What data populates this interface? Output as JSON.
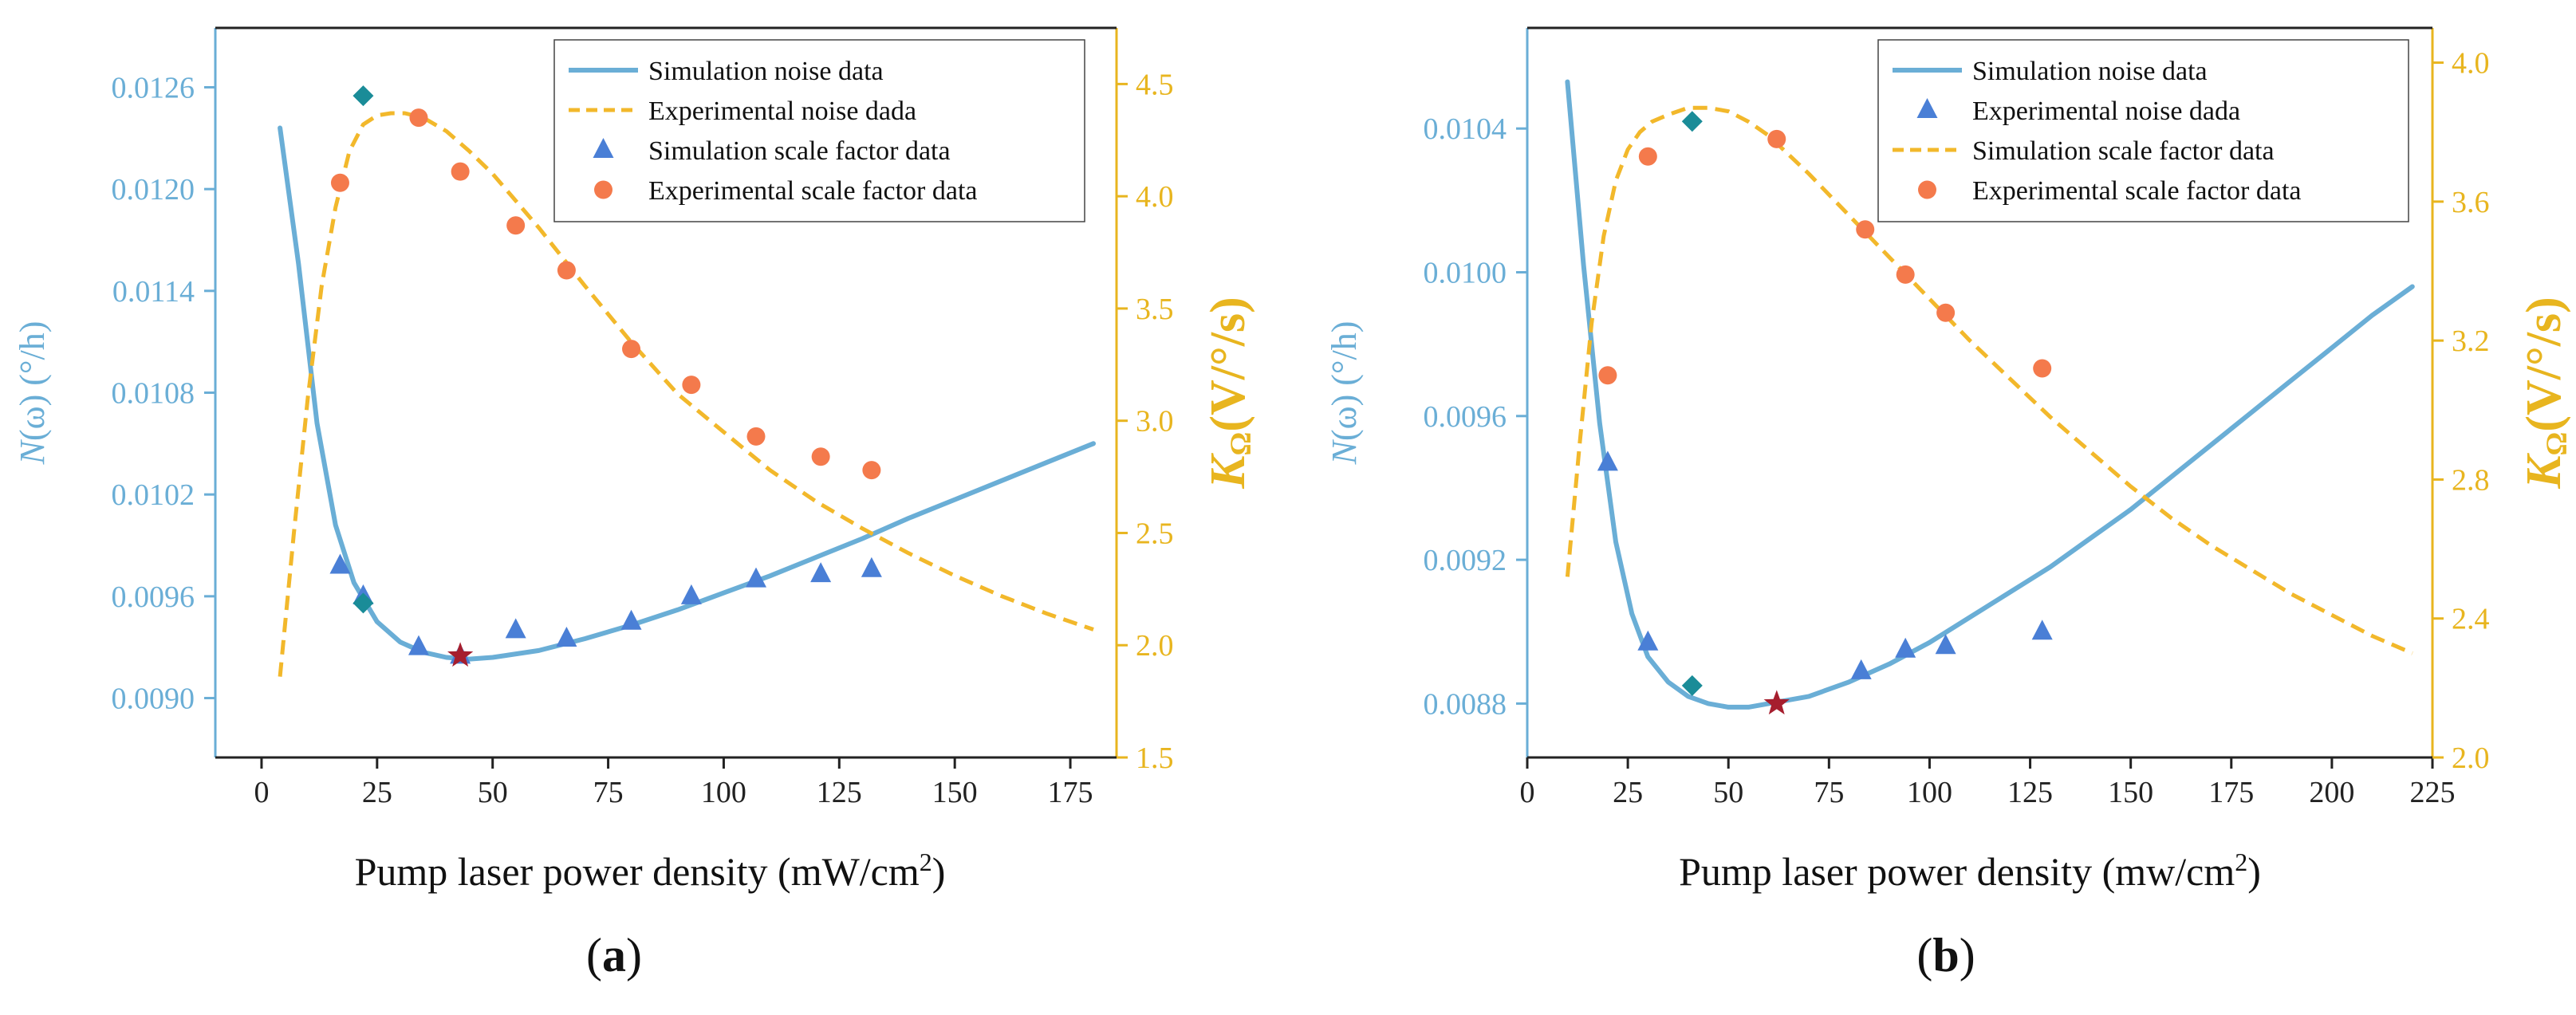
{
  "colors": {
    "blue": "#6AAED6",
    "blue_mark": "#4A7FD6",
    "orange_line": "#F2B82B",
    "orange_mark": "#F47A4C",
    "teal": "#1A8C98",
    "star": "#A61E2E",
    "right_axis": "#E8B51F"
  },
  "chart_data": [
    {
      "type": "line",
      "panel_label": "a",
      "xlabel": "Pump laser power density (mW/cm",
      "xlabel_sup": "2",
      "xlabel_tail": ")",
      "ylabel_left": "N(ω) (°/h)",
      "ylabel_right": "KΩ(V/°/s)",
      "xlim": [
        -10,
        185
      ],
      "xticks": [
        0,
        25,
        50,
        75,
        100,
        125,
        150,
        175
      ],
      "ylim_left": [
        0.00865,
        0.01295
      ],
      "yticks_left": [
        0.009,
        0.0096,
        0.0102,
        0.0108,
        0.0114,
        0.012,
        0.0126
      ],
      "ytick_labels_left": [
        "0.0090",
        "0.0096",
        "0.0102",
        "0.0108",
        "0.0114",
        "0.0120",
        "0.0126"
      ],
      "ylim_right": [
        1.5,
        4.75
      ],
      "yticks_right": [
        1.5,
        2.0,
        2.5,
        3.0,
        3.5,
        4.0,
        4.5
      ],
      "ytick_labels_right": [
        "1.5",
        "2.0",
        "2.5",
        "3.0",
        "3.5",
        "4.0",
        "4.5"
      ],
      "legend": [
        {
          "kind": "solid",
          "label": "Simulation noise data"
        },
        {
          "kind": "dash",
          "label": "Experimental noise dada"
        },
        {
          "kind": "triangle",
          "label": "Simulation  scale factor data"
        },
        {
          "kind": "circle",
          "label": "Experimental scale factor data"
        }
      ],
      "series": [
        {
          "name": "Simulation noise curve",
          "axis": "left",
          "style": "solid",
          "x": [
            4,
            8,
            12,
            16,
            20,
            25,
            30,
            35,
            40,
            45,
            50,
            60,
            70,
            80,
            90,
            100,
            110,
            120,
            130,
            140,
            150,
            160,
            170,
            180
          ],
          "y": [
            0.01236,
            0.01156,
            0.01062,
            0.01002,
            0.00968,
            0.00945,
            0.00933,
            0.00927,
            0.00924,
            0.00923,
            0.00924,
            0.00928,
            0.00935,
            0.00943,
            0.00952,
            0.00962,
            0.00972,
            0.00983,
            0.00994,
            0.01006,
            0.01017,
            0.01028,
            0.01039,
            0.0105
          ]
        },
        {
          "name": "Scale factor curve",
          "axis": "right",
          "style": "dash",
          "x": [
            4,
            7,
            10,
            13,
            16,
            19,
            22,
            25,
            28,
            31,
            35,
            40,
            45,
            50,
            60,
            70,
            80,
            90,
            100,
            110,
            120,
            130,
            140,
            150,
            160,
            170,
            180
          ],
          "y": [
            1.86,
            2.5,
            3.1,
            3.6,
            3.95,
            4.2,
            4.32,
            4.36,
            4.37,
            4.37,
            4.35,
            4.29,
            4.2,
            4.1,
            3.86,
            3.6,
            3.35,
            3.12,
            2.95,
            2.78,
            2.64,
            2.52,
            2.41,
            2.31,
            2.22,
            2.14,
            2.07
          ]
        },
        {
          "name": "Simulation noise points",
          "axis": "left",
          "marker": "triangle",
          "x": [
            17,
            22,
            34,
            43,
            55,
            66,
            80,
            93,
            107,
            121,
            132
          ],
          "y": [
            0.00978,
            0.0096,
            0.0093,
            0.00925,
            0.0094,
            0.00935,
            0.00945,
            0.0096,
            0.0097,
            0.00973,
            0.00976
          ]
        },
        {
          "name": "Experimental scale factor points",
          "axis": "right",
          "marker": "circle",
          "x": [
            17,
            34,
            43,
            55,
            66,
            80,
            93,
            107,
            121,
            132
          ],
          "y": [
            4.06,
            4.35,
            4.11,
            3.87,
            3.67,
            3.32,
            3.16,
            2.93,
            2.84,
            2.78
          ]
        },
        {
          "name": "Diamond highlights",
          "axis": "left",
          "marker": "diamond",
          "x": [
            22,
            22
          ],
          "y": [
            0.01255,
            0.00956
          ]
        },
        {
          "name": "Optimum point",
          "axis": "left",
          "marker": "star",
          "x": [
            43
          ],
          "y": [
            0.00925
          ]
        }
      ]
    },
    {
      "type": "line",
      "panel_label": "b",
      "xlabel": "Pump laser power density (mw/cm",
      "xlabel_sup": "2",
      "xlabel_tail": ")",
      "ylabel_left": "N(ω) (°/h)",
      "ylabel_right": "KΩ(V/°/s)",
      "xlim": [
        0,
        225
      ],
      "xticks": [
        0,
        25,
        50,
        75,
        100,
        125,
        150,
        175,
        200,
        225
      ],
      "ylim_left": [
        0.00865,
        0.01068
      ],
      "yticks_left": [
        0.0088,
        0.0092,
        0.0096,
        0.01,
        0.0104
      ],
      "ytick_labels_left": [
        "0.0088",
        "0.0092",
        "0.0096",
        "0.0100",
        "0.0104"
      ],
      "ylim_right": [
        2.0,
        4.1
      ],
      "yticks_right": [
        2.0,
        2.4,
        2.8,
        3.2,
        3.6,
        4.0
      ],
      "ytick_labels_right": [
        "2.0",
        "2.4",
        "2.8",
        "3.2",
        "3.6",
        "4.0"
      ],
      "legend": [
        {
          "kind": "solid",
          "label": "Simulation noise data"
        },
        {
          "kind": "triangle",
          "label": "Experimental noise dada"
        },
        {
          "kind": "dash",
          "label": "Simulation  scale factor data"
        },
        {
          "kind": "circle",
          "label": "Experimental scale factor data"
        }
      ],
      "series": [
        {
          "name": "Simulation noise curve",
          "axis": "left",
          "style": "solid",
          "x": [
            10,
            14,
            18,
            22,
            26,
            30,
            35,
            40,
            45,
            50,
            55,
            60,
            70,
            80,
            90,
            100,
            110,
            120,
            130,
            140,
            150,
            160,
            170,
            180,
            190,
            200,
            210,
            220
          ],
          "y": [
            0.01053,
            0.01002,
            0.00958,
            0.00925,
            0.00905,
            0.00893,
            0.00886,
            0.00882,
            0.0088,
            0.00879,
            0.00879,
            0.0088,
            0.00882,
            0.00886,
            0.00891,
            0.00897,
            0.00904,
            0.00911,
            0.00918,
            0.00926,
            0.00934,
            0.00943,
            0.00952,
            0.00961,
            0.0097,
            0.00979,
            0.00988,
            0.00996
          ]
        },
        {
          "name": "Scale factor curve",
          "axis": "right",
          "style": "dash",
          "x": [
            10,
            13,
            16,
            19,
            22,
            25,
            28,
            31,
            35,
            40,
            45,
            50,
            55,
            60,
            70,
            80,
            90,
            100,
            110,
            120,
            130,
            140,
            150,
            160,
            170,
            180,
            190,
            200,
            210,
            220
          ],
          "y": [
            2.52,
            2.9,
            3.25,
            3.5,
            3.66,
            3.75,
            3.8,
            3.83,
            3.85,
            3.87,
            3.87,
            3.86,
            3.83,
            3.79,
            3.68,
            3.56,
            3.44,
            3.32,
            3.2,
            3.09,
            2.98,
            2.88,
            2.78,
            2.69,
            2.61,
            2.54,
            2.47,
            2.41,
            2.35,
            2.3
          ]
        },
        {
          "name": "Experimental noise points",
          "axis": "left",
          "marker": "triangle",
          "x": [
            20,
            30,
            83,
            94,
            104,
            128
          ],
          "y": [
            0.00947,
            0.00897,
            0.00889,
            0.00895,
            0.00896,
            0.009
          ]
        },
        {
          "name": "Experimental scale factor points",
          "axis": "right",
          "marker": "circle",
          "x": [
            20,
            30,
            62,
            84,
            94,
            104,
            128
          ],
          "y": [
            3.1,
            3.73,
            3.78,
            3.52,
            3.39,
            3.28,
            3.12
          ]
        },
        {
          "name": "Diamond highlights",
          "axis": "left",
          "marker": "diamond",
          "x": [
            41,
            41
          ],
          "y": [
            0.01042,
            0.00885
          ]
        },
        {
          "name": "Optimum point",
          "axis": "left",
          "marker": "star",
          "x": [
            62
          ],
          "y": [
            0.0088
          ]
        }
      ]
    }
  ]
}
